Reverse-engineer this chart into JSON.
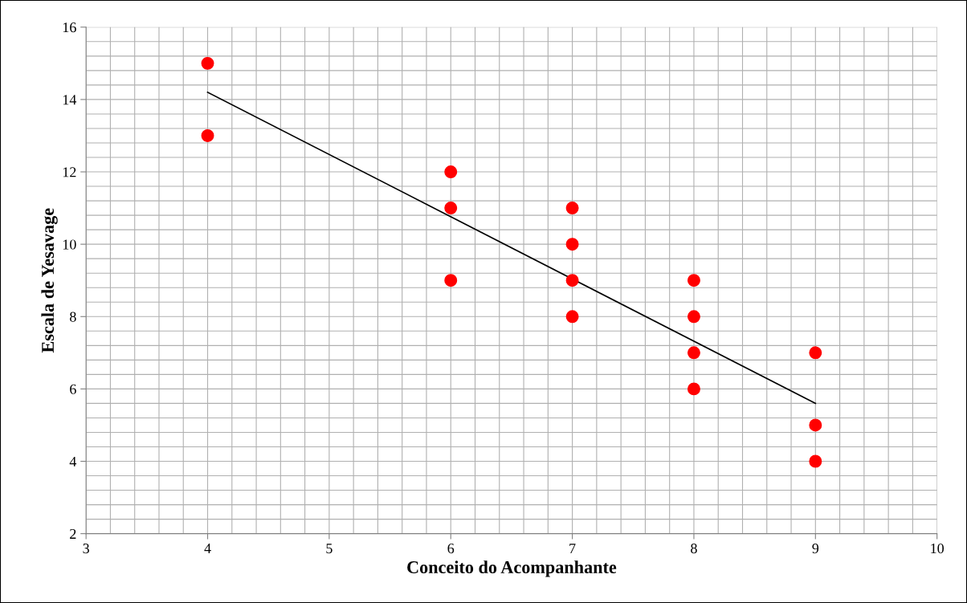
{
  "chart_data": {
    "type": "scatter",
    "xlabel": "Conceito do Acompanhante",
    "ylabel": "Escala de Yesavage",
    "xlim": [
      3,
      10
    ],
    "xticks": [
      3,
      4,
      5,
      6,
      7,
      8,
      9,
      10
    ],
    "ylim": [
      2,
      16
    ],
    "yticks": [
      2,
      4,
      6,
      8,
      10,
      12,
      14,
      16
    ],
    "grid": true,
    "series": [
      {
        "marker": "circle",
        "color": "#ff0000",
        "x": [
          4,
          4,
          6,
          6,
          6,
          7,
          7,
          7,
          7,
          8,
          8,
          8,
          8,
          9,
          9,
          9
        ],
        "values": [
          15,
          13,
          12,
          11,
          9,
          11,
          10,
          9,
          8,
          9,
          8,
          7,
          6,
          7,
          5,
          4
        ]
      },
      {
        "type": "line",
        "marker": "none",
        "color": "#000000",
        "x": [
          4,
          9
        ],
        "values": [
          14.2,
          5.6
        ]
      }
    ]
  }
}
